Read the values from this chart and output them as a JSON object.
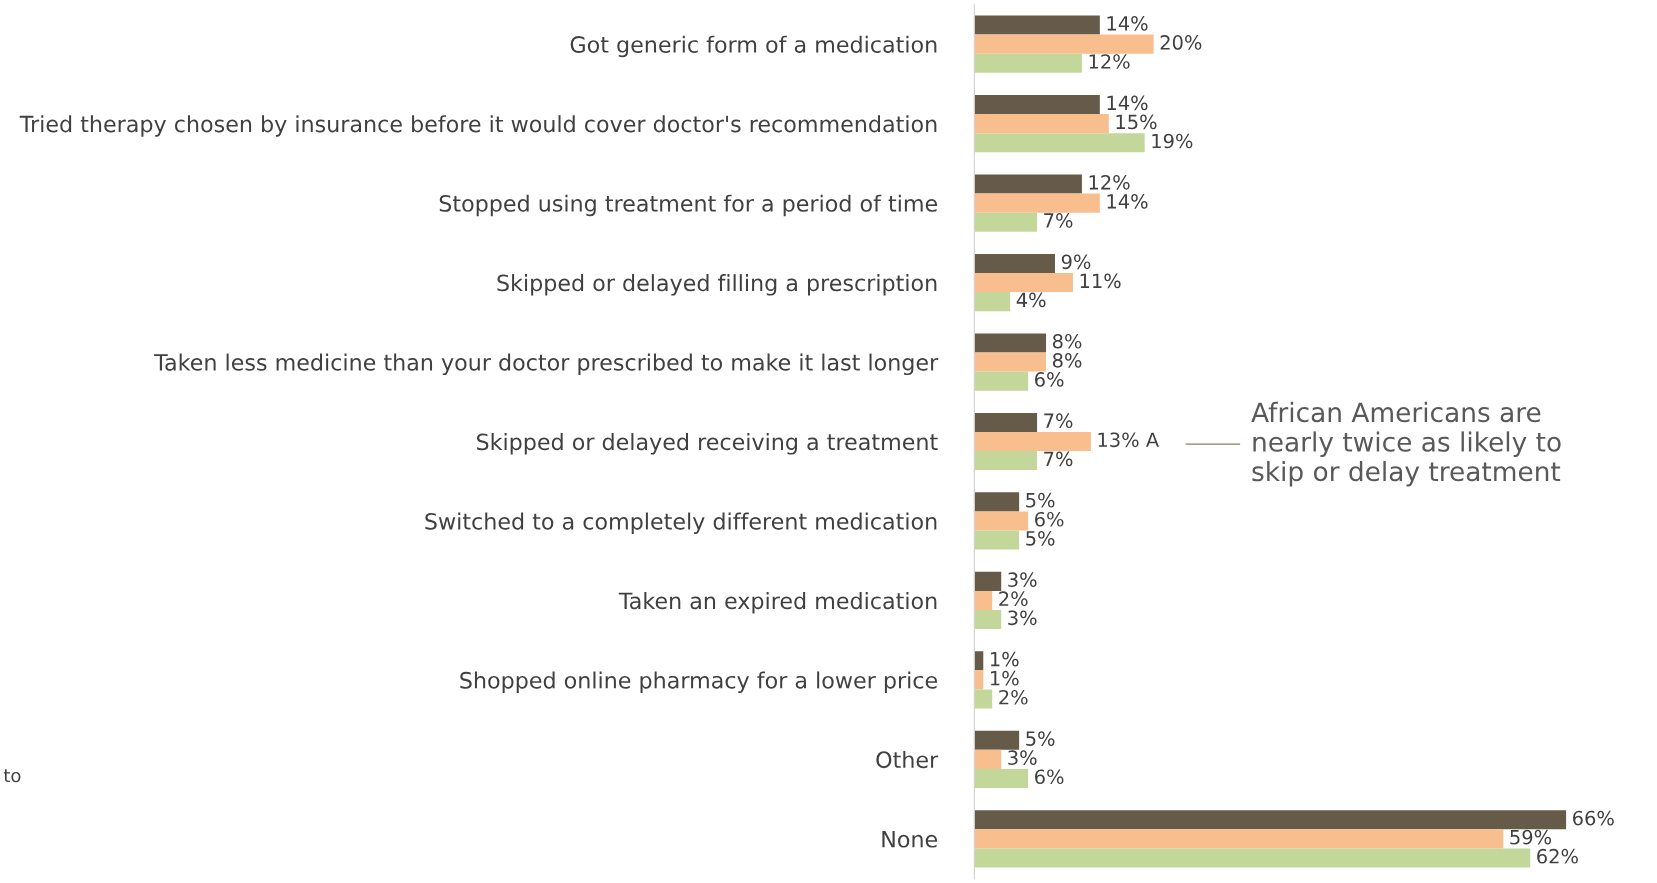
{
  "chart_data": {
    "type": "bar",
    "orientation": "horizontal",
    "categories": [
      "Got generic form of a medication",
      "Tried therapy chosen by insurance before it would cover doctor's recommendation",
      "Stopped using treatment for a period of time",
      "Skipped or delayed filling a prescription",
      "Taken less medicine than your doctor prescribed to make it last longer",
      "Skipped or delayed receiving a treatment",
      "Switched to a completely different medication",
      "Taken an expired medication",
      "Shopped online pharmacy for a lower price",
      "Other",
      "None"
    ],
    "series": [
      {
        "color": "#665a48",
        "values": [
          14,
          14,
          12,
          9,
          8,
          7,
          5,
          3,
          1,
          5,
          66
        ],
        "value_labels": [
          "14%",
          "14%",
          "12%",
          "9%",
          "8%",
          "7%",
          "5%",
          "3%",
          "1%",
          "5%",
          "66%"
        ]
      },
      {
        "color": "#f8be8e",
        "values": [
          20,
          15,
          14,
          11,
          8,
          13,
          6,
          2,
          1,
          3,
          59
        ],
        "value_labels": [
          "20%",
          "15%",
          "14%",
          "11%",
          "8%",
          "13% A",
          "6%",
          "2%",
          "1%",
          "3%",
          "59%"
        ]
      },
      {
        "color": "#c4d79b",
        "values": [
          12,
          19,
          7,
          4,
          6,
          7,
          5,
          3,
          2,
          6,
          62
        ],
        "value_labels": [
          "12%",
          "19%",
          "7%",
          "4%",
          "6%",
          "7%",
          "5%",
          "3%",
          "2%",
          "6%",
          "62%"
        ]
      }
    ],
    "tick_labels": "y",
    "grid": false,
    "legend": false,
    "annotations": [
      "African Americans are\nnearly twice as likely to\nskip or delay treatment",
      "to"
    ]
  }
}
